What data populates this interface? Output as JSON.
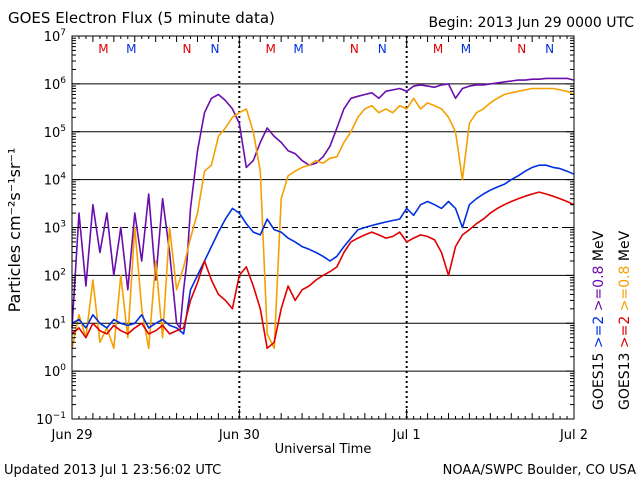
{
  "header": {
    "title": "GOES Electron Flux (5 minute data)",
    "begin": "Begin: 2013 Jun 29 0000 UTC"
  },
  "footer": {
    "updated": "Updated 2013 Jul  1 23:56:02 UTC",
    "credit": "NOAA/SWPC Boulder, CO USA"
  },
  "colors": {
    "goes15_ge08": "#6a0dad",
    "goes15_ge2": "#0030e0",
    "goes13_ge08": "#f5a000",
    "goes13_ge2": "#e00000",
    "marker_M": "#e00000",
    "marker_N_red": "#e00000",
    "marker_N_blue": "#0030e0",
    "marker_M_blue": "#0030e0"
  },
  "chart_data": {
    "type": "line",
    "title": "GOES Electron Flux (5 minute data)",
    "xlabel": "Universal Time",
    "ylabel": "Particles cm⁻²s⁻¹sr⁻¹",
    "xlim_hours": [
      0,
      72
    ],
    "x_tick_labels": [
      {
        "hour": 0,
        "label": "Jun 29"
      },
      {
        "hour": 24,
        "label": "Jun 30"
      },
      {
        "hour": 48,
        "label": "Jul 1"
      },
      {
        "hour": 72,
        "label": "Jul 2"
      }
    ],
    "yscale": "log",
    "ylim": [
      0.1,
      10000000
    ],
    "y_tick_exponents": [
      -1,
      0,
      1,
      2,
      3,
      4,
      5,
      6,
      7
    ],
    "threshold_line": 1000,
    "markers": [
      {
        "hour": 4.5,
        "label": "M",
        "color": "#e00000"
      },
      {
        "hour": 8.5,
        "label": "M",
        "color": "#0030e0"
      },
      {
        "hour": 16.5,
        "label": "N",
        "color": "#e00000"
      },
      {
        "hour": 20.5,
        "label": "N",
        "color": "#0030e0"
      },
      {
        "hour": 28.5,
        "label": "M",
        "color": "#e00000"
      },
      {
        "hour": 32.5,
        "label": "M",
        "color": "#0030e0"
      },
      {
        "hour": 40.5,
        "label": "N",
        "color": "#e00000"
      },
      {
        "hour": 44.5,
        "label": "N",
        "color": "#0030e0"
      },
      {
        "hour": 52.5,
        "label": "M",
        "color": "#e00000"
      },
      {
        "hour": 56.5,
        "label": "M",
        "color": "#0030e0"
      },
      {
        "hour": 64.5,
        "label": "N",
        "color": "#e00000"
      },
      {
        "hour": 68.5,
        "label": "N",
        "color": "#0030e0"
      }
    ],
    "legend": {
      "goes15": "GOES15",
      "goes13": "GOES13",
      "unit": "MeV",
      "items": [
        {
          "label": ">=2",
          "color": "#0030e0"
        },
        {
          "label": ">=0.8",
          "color": "#6a0dad"
        },
        {
          "label": ">=2",
          "color": "#e00000"
        },
        {
          "label": ">=0.8",
          "color": "#f5a000"
        }
      ]
    },
    "series": [
      {
        "name": "GOES15 >=0.8 MeV",
        "color": "#6a0dad",
        "x": [
          0,
          1,
          2,
          3,
          4,
          5,
          6,
          7,
          8,
          9,
          10,
          11,
          12,
          13,
          14,
          15,
          15.5,
          16,
          16.5,
          17,
          18,
          19,
          20,
          21,
          22,
          23,
          24,
          25,
          26,
          27,
          28,
          29,
          30,
          31,
          32,
          33,
          34,
          35,
          36,
          37,
          38,
          39,
          40,
          41,
          42,
          43,
          44,
          45,
          46,
          47,
          48,
          49,
          50,
          51,
          52,
          53,
          54,
          55,
          56,
          57,
          58,
          59,
          60,
          61,
          62,
          63,
          64,
          65,
          66,
          67,
          68,
          69,
          70,
          71,
          72
        ],
        "y": [
          8,
          2000,
          60,
          3000,
          300,
          2000,
          100,
          1000,
          50,
          2000,
          200,
          5000,
          80,
          4000,
          300,
          10,
          8,
          50,
          200,
          2500,
          40000,
          250000,
          500000,
          600000,
          450000,
          300000,
          150000,
          18000,
          25000,
          60000,
          120000,
          80000,
          60000,
          40000,
          35000,
          25000,
          20000,
          22000,
          30000,
          50000,
          120000,
          300000,
          500000,
          550000,
          600000,
          650000,
          500000,
          700000,
          750000,
          800000,
          700000,
          900000,
          950000,
          900000,
          850000,
          950000,
          1000000,
          500000,
          800000,
          900000,
          950000,
          950000,
          1000000,
          1050000,
          1100000,
          1150000,
          1200000,
          1200000,
          1250000,
          1250000,
          1300000,
          1300000,
          1300000,
          1300000,
          1200000
        ]
      },
      {
        "name": "GOES13 >=0.8 MeV",
        "color": "#f5a000",
        "x": [
          0,
          1,
          2,
          3,
          4,
          5,
          6,
          7,
          8,
          9,
          10,
          11,
          12,
          13,
          14,
          15,
          16,
          17,
          18,
          19,
          20,
          21,
          22,
          23,
          24,
          25,
          26,
          27,
          28,
          29,
          30,
          31,
          32,
          33,
          34,
          35,
          36,
          37,
          38,
          39,
          40,
          41,
          42,
          43,
          44,
          45,
          46,
          47,
          48,
          49,
          50,
          51,
          52,
          53,
          54,
          55,
          56,
          57,
          58,
          59,
          60,
          61,
          62,
          63,
          64,
          65,
          66,
          67,
          68,
          69,
          70,
          71,
          72
        ],
        "y": [
          3,
          15,
          5,
          80,
          4,
          8,
          3,
          100,
          5,
          1000,
          20,
          3,
          200,
          5,
          1000,
          50,
          150,
          600,
          2000,
          15000,
          20000,
          80000,
          120000,
          200000,
          250000,
          300000,
          100000,
          15000,
          6,
          3,
          4000,
          12000,
          15000,
          18000,
          20000,
          25000,
          22000,
          28000,
          30000,
          60000,
          100000,
          200000,
          300000,
          350000,
          250000,
          300000,
          250000,
          350000,
          300000,
          500000,
          300000,
          400000,
          350000,
          300000,
          200000,
          100000,
          10000,
          150000,
          250000,
          300000,
          400000,
          500000,
          600000,
          650000,
          700000,
          750000,
          800000,
          800000,
          800000,
          800000,
          750000,
          700000,
          600000
        ]
      },
      {
        "name": "GOES15 >=2 MeV",
        "color": "#0030e0",
        "x": [
          0,
          1,
          2,
          3,
          4,
          5,
          6,
          7,
          8,
          9,
          10,
          11,
          12,
          13,
          14,
          15,
          16,
          17,
          18,
          19,
          20,
          21,
          22,
          23,
          24,
          25,
          26,
          27,
          28,
          29,
          30,
          31,
          32,
          33,
          34,
          35,
          36,
          37,
          38,
          39,
          40,
          41,
          42,
          43,
          44,
          45,
          46,
          47,
          48,
          49,
          50,
          51,
          52,
          53,
          54,
          55,
          56,
          57,
          58,
          59,
          60,
          61,
          62,
          63,
          64,
          65,
          66,
          67,
          68,
          69,
          70,
          71,
          72
        ],
        "y": [
          10,
          12,
          8,
          15,
          10,
          8,
          12,
          10,
          9,
          10,
          15,
          8,
          10,
          12,
          9,
          8,
          6,
          50,
          100,
          200,
          400,
          800,
          1500,
          2500,
          2000,
          1200,
          800,
          700,
          1500,
          900,
          800,
          600,
          500,
          400,
          350,
          300,
          250,
          200,
          250,
          400,
          600,
          900,
          1000,
          1100,
          1200,
          1300,
          1400,
          1500,
          2500,
          1800,
          3000,
          3500,
          3000,
          2500,
          3500,
          2500,
          1000,
          3000,
          4000,
          5000,
          6000,
          7000,
          8000,
          10000,
          12000,
          15000,
          18000,
          20000,
          20000,
          18000,
          17000,
          15000,
          13000
        ]
      },
      {
        "name": "GOES13 >=2 MeV",
        "color": "#e00000",
        "x": [
          0,
          1,
          2,
          3,
          4,
          5,
          6,
          7,
          8,
          9,
          10,
          11,
          12,
          13,
          14,
          15,
          16,
          17,
          18,
          19,
          20,
          21,
          22,
          23,
          24,
          25,
          26,
          27,
          28,
          29,
          30,
          31,
          32,
          33,
          34,
          35,
          36,
          37,
          38,
          39,
          40,
          41,
          42,
          43,
          44,
          45,
          46,
          47,
          48,
          49,
          50,
          51,
          52,
          53,
          54,
          55,
          56,
          57,
          58,
          59,
          60,
          61,
          62,
          63,
          64,
          65,
          66,
          67,
          68,
          69,
          70,
          71,
          72
        ],
        "y": [
          6,
          8,
          5,
          10,
          7,
          6,
          9,
          7,
          6,
          8,
          10,
          6,
          7,
          9,
          6,
          7,
          8,
          30,
          70,
          200,
          80,
          40,
          30,
          20,
          100,
          150,
          60,
          20,
          3,
          4,
          20,
          60,
          30,
          50,
          60,
          80,
          100,
          120,
          150,
          300,
          500,
          600,
          700,
          800,
          700,
          600,
          650,
          800,
          500,
          600,
          700,
          650,
          550,
          300,
          100,
          400,
          700,
          900,
          1200,
          1500,
          2000,
          2500,
          3000,
          3500,
          4000,
          4500,
          5000,
          5500,
          5000,
          4500,
          4000,
          3500,
          3000
        ]
      }
    ]
  }
}
